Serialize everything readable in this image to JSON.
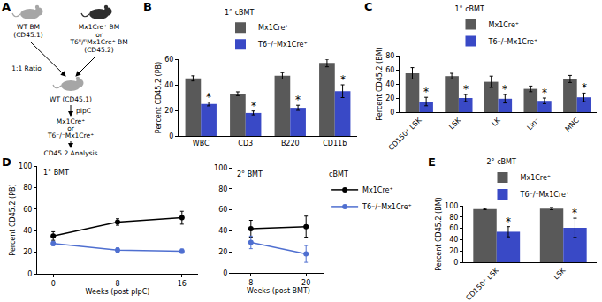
{
  "diagram": {
    "panel": "A",
    "nodes": [
      {
        "label": [
          "WT BM",
          "(CD45.1)"
        ]
      },
      {
        "label": [
          "Mx1Cre⁺ BM",
          "or",
          "T6ᶠˡ/ᶠˡMx1Cre⁺ BM",
          "(CD45.2)"
        ]
      },
      {
        "label": [
          "WT (CD45.1)"
        ]
      },
      {
        "label": [
          "Mx1Cre⁺",
          "or",
          "T6⁻/⁻Mx1Cre⁺"
        ]
      },
      {
        "label": [
          "CD45.2 Analysis"
        ]
      }
    ],
    "edges": [
      {
        "label": "1:1 Ratio"
      },
      {
        "label": "pIpC"
      }
    ]
  },
  "chart_data": [
    {
      "panel": "B",
      "type": "bar",
      "legend_title": "1° cBMT",
      "y_label": "Percent CD45.2 (PB)",
      "categories": [
        "WBC",
        "CD3",
        "B220",
        "CD11b"
      ],
      "series": [
        {
          "name": "Mx1Cre⁺",
          "color": "#595959",
          "values": [
            45,
            33,
            47,
            57
          ],
          "error": [
            2,
            1.5,
            2.5,
            3
          ]
        },
        {
          "name": "T6⁻/⁻Mx1Cre⁺",
          "color": "#3949c6",
          "values": [
            25,
            18,
            22,
            35
          ],
          "error": [
            1.5,
            1.5,
            2,
            5
          ]
        }
      ],
      "ylim": [
        0,
        60
      ],
      "yticks": [
        0,
        20,
        40,
        60
      ],
      "grid": false,
      "legend": "top",
      "annotations": [
        {
          "text": "*",
          "category": "WBC",
          "series": "T6⁻/⁻Mx1Cre⁺"
        },
        {
          "text": "*",
          "category": "CD3",
          "series": "T6⁻/⁻Mx1Cre⁺"
        },
        {
          "text": "*",
          "category": "B220",
          "series": "T6⁻/⁻Mx1Cre⁺"
        },
        {
          "text": "*",
          "category": "CD11b",
          "series": "T6⁻/⁻Mx1Cre⁺"
        }
      ]
    },
    {
      "panel": "C",
      "type": "bar",
      "legend_title": "1° cBMT",
      "y_label": "Percent CD45.2 (BM)",
      "categories": [
        "CD150⁺ LSK",
        "LSK",
        "LK",
        "Lin⁻",
        "MNC"
      ],
      "series": [
        {
          "name": "Mx1Cre⁺",
          "color": "#595959",
          "values": [
            55,
            51,
            43,
            33,
            47
          ],
          "error": [
            8,
            4,
            8,
            4,
            5
          ]
        },
        {
          "name": "T6⁻/⁻Mx1Cre⁺",
          "color": "#3949c6",
          "values": [
            15,
            20,
            19,
            16,
            21
          ],
          "error": [
            6,
            5,
            6,
            4,
            6
          ]
        }
      ],
      "ylim": [
        0,
        80
      ],
      "yticks": [
        0,
        20,
        40,
        60,
        80
      ],
      "grid": false,
      "legend": "top",
      "annotations": [
        {
          "text": "*",
          "category": "CD150⁺ LSK",
          "series": "T6⁻/⁻Mx1Cre⁺"
        },
        {
          "text": "*",
          "category": "LSK",
          "series": "T6⁻/⁻Mx1Cre⁺"
        },
        {
          "text": "*",
          "category": "LK",
          "series": "T6⁻/⁻Mx1Cre⁺"
        },
        {
          "text": "*",
          "category": "Lin⁻",
          "series": "T6⁻/⁻Mx1Cre⁺"
        },
        {
          "text": "*",
          "category": "MNC",
          "series": "T6⁻/⁻Mx1Cre⁺"
        }
      ]
    },
    {
      "panel": "D",
      "type": "line",
      "title": "1° BMT",
      "x_label": "Weeks (post pIpC)",
      "y_label": "Percent CD45.2 (PB)",
      "x": [
        0,
        8,
        16
      ],
      "xlim": [
        -2,
        18
      ],
      "xticks": [
        0,
        8,
        16
      ],
      "ylim": [
        0,
        100
      ],
      "yticks": [
        0,
        20,
        40,
        60,
        80,
        100
      ],
      "grid": false,
      "series": [
        {
          "name": "Mx1Cre⁺",
          "color": "#000000",
          "marker": "circle",
          "values": [
            35,
            48,
            52
          ],
          "error": [
            4,
            3,
            6
          ]
        },
        {
          "name": "T6⁻/⁻Mx1Cre⁺",
          "color": "#4f6fd0",
          "marker": "circle",
          "values": [
            28,
            22,
            21
          ],
          "error": [
            2,
            2,
            2
          ]
        }
      ]
    },
    {
      "type": "line",
      "title": "2° BMT",
      "x_label": "Weeks (post BMT)",
      "legend_title": "cBMT",
      "x": [
        8,
        20
      ],
      "xlim": [
        4,
        24
      ],
      "xticks": [
        8,
        20
      ],
      "ylim": [
        0,
        100
      ],
      "yticks": [
        0,
        20,
        40,
        60,
        80,
        100
      ],
      "grid": false,
      "legend": "right",
      "series": [
        {
          "name": "Mx1Cre⁺",
          "color": "#000000",
          "marker": "circle",
          "values": [
            42,
            44
          ],
          "error": [
            8,
            10
          ]
        },
        {
          "name": "T6⁻/⁻Mx1Cre⁺",
          "color": "#4f6fd0",
          "marker": "circle",
          "values": [
            29,
            18
          ],
          "error": [
            6,
            8
          ]
        }
      ]
    },
    {
      "panel": "E",
      "type": "bar",
      "legend_title": "2° cBMT",
      "y_label": "Percent CD45.2 (BM)",
      "categories": [
        "CD150⁺ LSK",
        "LSK"
      ],
      "series": [
        {
          "name": "Mx1Cre⁺",
          "color": "#595959",
          "values": [
            94,
            95
          ],
          "error": [
            1,
            2
          ]
        },
        {
          "name": "T6⁻/⁻Mx1Cre⁺",
          "color": "#3949c6",
          "values": [
            54,
            61
          ],
          "error": [
            9,
            17
          ]
        }
      ],
      "ylim": [
        0,
        100
      ],
      "yticks": [
        0,
        20,
        40,
        60,
        80,
        100
      ],
      "grid": false,
      "legend": "top",
      "annotations": [
        {
          "text": "*",
          "category": "CD150⁺ LSK",
          "series": "T6⁻/⁻Mx1Cre⁺"
        },
        {
          "text": "*",
          "category": "LSK",
          "series": "T6⁻/⁻Mx1Cre⁺"
        }
      ]
    }
  ]
}
